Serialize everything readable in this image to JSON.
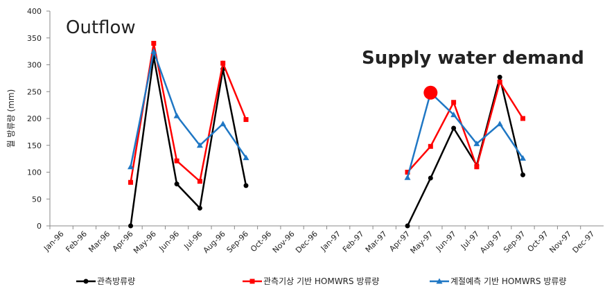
{
  "chart_data": {
    "type": "line",
    "annotations": [
      "Outflow",
      "Supply water demand"
    ],
    "y_label": "월 방류량 (mm)",
    "categories": [
      "Jan-96",
      "Feb-96",
      "Mar-96",
      "Apr-96",
      "May-96",
      "Jun-96",
      "Jul-96",
      "Aug-96",
      "Sep-96",
      "Oct-96",
      "Nov-96",
      "Dec-96",
      "Jan-97",
      "Feb-97",
      "Mar-97",
      "Apr-97",
      "May-97",
      "Jun-97",
      "Jul-97",
      "Aug-97",
      "Sep-97",
      "Oct-97",
      "Nov-97",
      "Dec-97"
    ],
    "series": [
      {
        "name": "관측방류량",
        "color": "#000000",
        "marker": "circle",
        "values": [
          null,
          null,
          null,
          0,
          315,
          78,
          33,
          292,
          75,
          null,
          null,
          null,
          null,
          null,
          null,
          0,
          89,
          182,
          113,
          277,
          95,
          null,
          null,
          null
        ]
      },
      {
        "name": "관측기상 기반 HOMWRS 방류량",
        "color": "#ff0000",
        "marker": "square",
        "values": [
          null,
          null,
          null,
          81,
          340,
          121,
          83,
          303,
          198,
          null,
          null,
          null,
          null,
          null,
          null,
          100,
          148,
          230,
          110,
          268,
          200,
          null,
          null,
          null
        ]
      },
      {
        "name": "계절예측 기반 HOMWRS 방류량",
        "color": "#1f77c4",
        "marker": "triangle",
        "values": [
          null,
          null,
          null,
          110,
          325,
          205,
          150,
          190,
          127,
          null,
          null,
          null,
          null,
          null,
          null,
          90,
          248,
          207,
          153,
          190,
          126,
          null,
          null,
          null
        ]
      }
    ],
    "highlight": {
      "category": "May-97",
      "value": 248,
      "color": "#ff0000"
    },
    "ylim": [
      0,
      400
    ],
    "yticks": [
      0,
      50,
      100,
      150,
      200,
      250,
      300,
      350,
      400
    ]
  }
}
